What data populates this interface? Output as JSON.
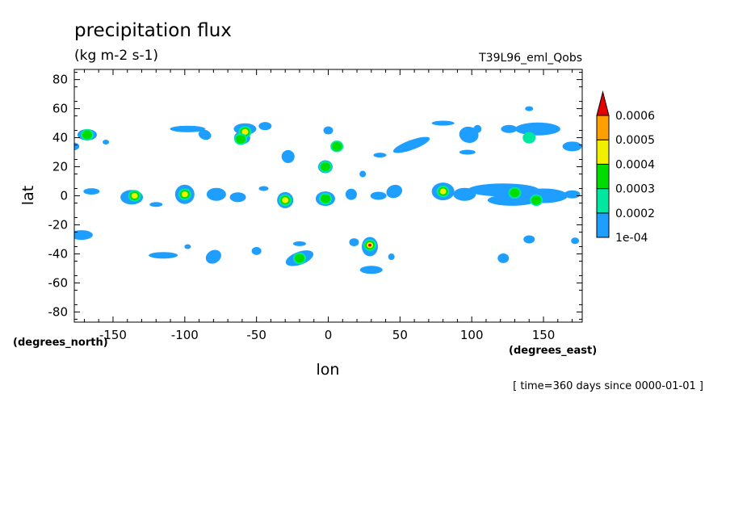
{
  "chart_data": {
    "type": "contour",
    "title": "precipitation flux",
    "units": "(kg m-2 s-1)",
    "experiment": "T39L96_eml_Qobs",
    "xlabel": "lon",
    "ylabel": "lat",
    "x_units": "(degrees_east)",
    "y_units": "(degrees_north)",
    "time_label": "[ time=360 days since 0000-01-01 ]",
    "xlim": [
      -177,
      177
    ],
    "ylim": [
      -87,
      87
    ],
    "x_ticks": [
      "-150",
      "-100",
      "-50",
      "0",
      "50",
      "100",
      "150"
    ],
    "x_tick_values": [
      -150,
      -100,
      -50,
      0,
      50,
      100,
      150
    ],
    "y_ticks": [
      "80",
      "60",
      "40",
      "20",
      "0",
      "-20",
      "-40",
      "-60",
      "-80"
    ],
    "y_tick_values": [
      80,
      60,
      40,
      20,
      0,
      -20,
      -40,
      -60,
      -80
    ],
    "grid": false,
    "colorbar": {
      "labels": [
        "0.0006",
        "0.0005",
        "0.0004",
        "0.0003",
        "0.0002",
        "1e-04"
      ],
      "levels": [
        0.0001,
        0.0002,
        0.0003,
        0.0004,
        0.0005,
        0.0006
      ],
      "colors": [
        "#1e9eff",
        "#00e8a0",
        "#00dc00",
        "#f0f000",
        "#ffa000",
        "#e60000"
      ],
      "extend": "max"
    },
    "max_level_by_feature": [
      {
        "lon": -168,
        "lat": 42,
        "level": 0.0003
      },
      {
        "lon": -98,
        "lat": 46,
        "level": 0.0002
      },
      {
        "lon": -58,
        "lat": 44,
        "level": 0.0004
      },
      {
        "lon": 0,
        "lat": 45,
        "level": 0.0002
      },
      {
        "lon": 6,
        "lat": 34,
        "level": 0.0003
      },
      {
        "lon": -2,
        "lat": 20,
        "level": 0.0003
      },
      {
        "lon": -135,
        "lat": 0,
        "level": 0.0004
      },
      {
        "lon": -100,
        "lat": 1,
        "level": 0.0004
      },
      {
        "lon": -30,
        "lat": -3,
        "level": 0.0004
      },
      {
        "lon": -2,
        "lat": -2,
        "level": 0.0003
      },
      {
        "lon": 80,
        "lat": 3,
        "level": 0.0004
      },
      {
        "lon": 130,
        "lat": 2,
        "level": 0.0003
      },
      {
        "lon": -20,
        "lat": -43,
        "level": 0.0003
      },
      {
        "lon": 29,
        "lat": -34,
        "level": 0.0006
      },
      {
        "lon": 140,
        "lat": 40,
        "level": 0.0002
      }
    ]
  }
}
